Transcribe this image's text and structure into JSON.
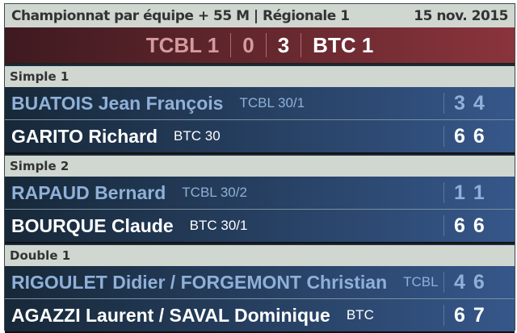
{
  "header": {
    "title": "Championnat par équipe + 55 M | Régionale 1",
    "date": "15 nov. 2015"
  },
  "score": {
    "home": "TCBL 1",
    "home_score": "0",
    "away_score": "3",
    "away": "BTC 1"
  },
  "sections": [
    {
      "label": "Simple 1",
      "rows": [
        {
          "name": "BUATOIS Jean François",
          "club": "TCBL 30/1",
          "sets": [
            "3",
            "4"
          ],
          "winner": false
        },
        {
          "name": "GARITO Richard",
          "club": "BTC 30",
          "sets": [
            "6",
            "6"
          ],
          "winner": true
        }
      ]
    },
    {
      "label": "Simple 2",
      "rows": [
        {
          "name": "RAPAUD Bernard",
          "club": "TCBL 30/2",
          "sets": [
            "1",
            "1"
          ],
          "winner": false
        },
        {
          "name": "BOURQUE Claude",
          "club": "BTC 30/1",
          "sets": [
            "6",
            "6"
          ],
          "winner": true
        }
      ]
    },
    {
      "label": "Double 1",
      "rows": [
        {
          "name": "RIGOULET Didier / FORGEMONT Christian",
          "club": "TCBL",
          "sets": [
            "4",
            "6"
          ],
          "winner": false
        },
        {
          "name": "AGAZZI Laurent / SAVAL Dominique",
          "club": "BTC",
          "sets": [
            "6",
            "7"
          ],
          "winner": true
        }
      ]
    }
  ],
  "colors": {
    "loser_text": "#8fb0d8",
    "winner_text": "#ffffff",
    "score_bar": "#8a343c",
    "row_blue": "#36578a"
  }
}
